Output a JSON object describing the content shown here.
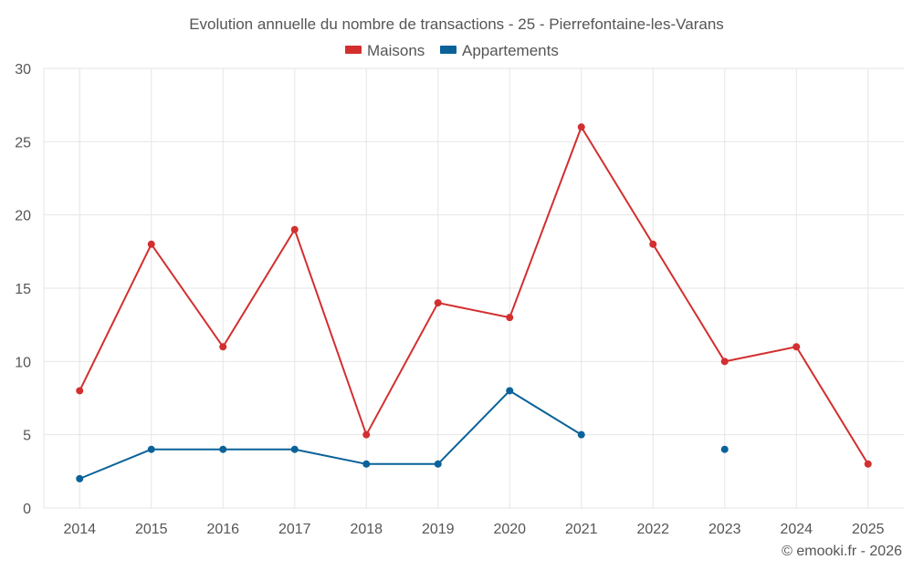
{
  "chart_data": {
    "type": "line",
    "title": "Evolution annuelle du nombre de transactions - 25 - Pierrefontaine-les-Varans",
    "categories": [
      "2014",
      "2015",
      "2016",
      "2017",
      "2018",
      "2019",
      "2020",
      "2021",
      "2022",
      "2023",
      "2024",
      "2025"
    ],
    "series": [
      {
        "name": "Maisons",
        "color": "#d32f2f",
        "values": [
          8,
          18,
          11,
          19,
          5,
          14,
          13,
          26,
          18,
          10,
          11,
          3
        ]
      },
      {
        "name": "Appartements",
        "color": "#0a6299",
        "values": [
          2,
          4,
          4,
          4,
          3,
          3,
          8,
          5,
          null,
          4,
          null,
          null
        ]
      }
    ],
    "ylim": [
      0,
      30
    ],
    "yticks": [
      0,
      5,
      10,
      15,
      20,
      25,
      30
    ],
    "grid": true,
    "legend": "top-center",
    "xlabel": "",
    "ylabel": ""
  },
  "credit": "© emooki.fr - 2026"
}
